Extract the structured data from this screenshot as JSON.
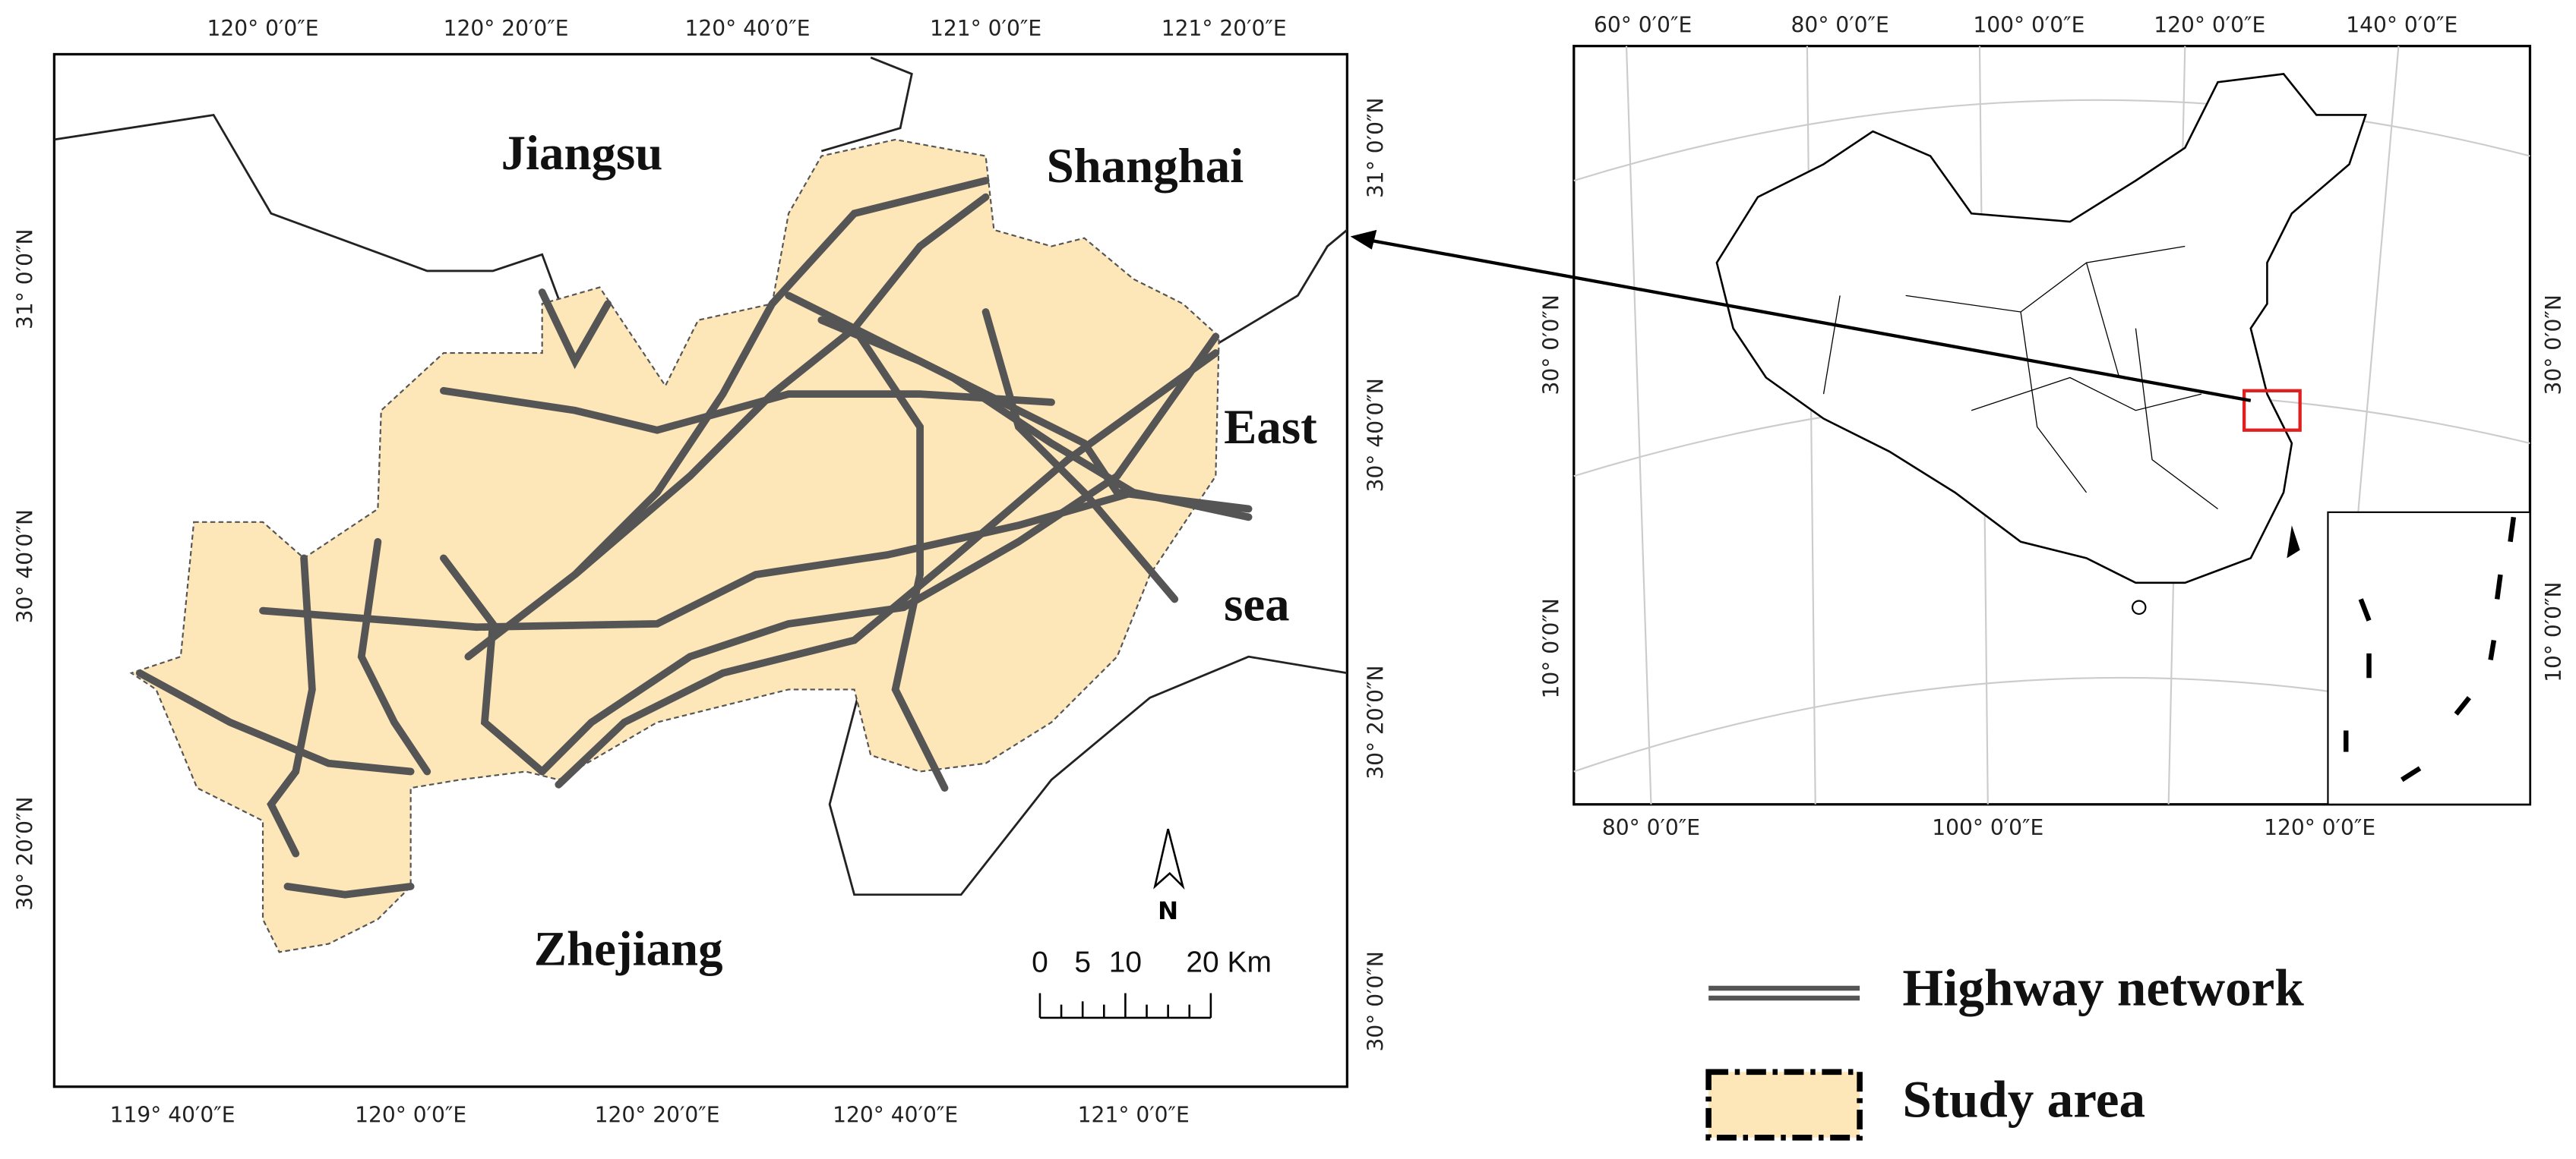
{
  "left_map": {
    "top_ticks": [
      "120° 0′0″E",
      "120° 20′0″E",
      "120° 40′0″E",
      "121° 0′0″E",
      "121° 20′0″E"
    ],
    "bottom_ticks": [
      "119° 40′0″E",
      "120° 0′0″E",
      "120° 20′0″E",
      "120° 40′0″E",
      "121° 0′0″E"
    ],
    "left_ticks": [
      "31° 0′0″N",
      "30° 40′0″N",
      "30° 20′0″N"
    ],
    "right_ticks": [
      "31° 0′0″N",
      "30° 40′0″N",
      "30° 20′0″N",
      "30° 0′0″N"
    ],
    "labels": {
      "jiangsu": "Jiangsu",
      "shanghai": "Shanghai",
      "east": "East",
      "sea": "sea",
      "zhejiang": "Zhejiang"
    },
    "north": "N",
    "scale_bar": [
      "0",
      "5",
      "10",
      "20 Km"
    ]
  },
  "right_map": {
    "top_ticks": [
      "60° 0′0″E",
      "80° 0′0″E",
      "100° 0′0″E",
      "120° 0′0″E",
      "140° 0′0″E"
    ],
    "bottom_ticks": [
      "80° 0′0″E",
      "100° 0′0″E",
      "120° 0′0″E"
    ],
    "left_ticks": [
      "30° 0′0″N",
      "10° 0′0″N"
    ],
    "right_ticks": [
      "30° 0′0″N",
      "10° 0′0″N"
    ]
  },
  "legend": {
    "highway": "Highway network",
    "study_area": "Study area"
  }
}
